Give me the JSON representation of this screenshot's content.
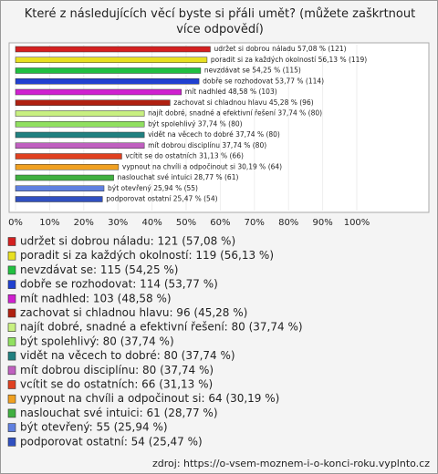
{
  "chart_data": {
    "type": "bar",
    "title": "Které z následujících věcí byste si přáli umět? (můžete zaškrtnout více odpovědí)",
    "values": [
      57.08,
      56.13,
      54.25,
      53.77,
      48.58,
      45.28,
      37.74,
      37.74,
      37.74,
      37.74,
      31.13,
      30.19,
      28.77,
      25.94,
      25.47
    ],
    "value_labels": [
      "udržet si dobrou náladu 57,08 % (121)",
      "poradit si za každých okolností 56,13 % (119)",
      "nevzdávat se 54,25 % (115)",
      "dobře se rozhodovat 53,77 % (114)",
      "mít nadhled 48,58 % (103)",
      "zachovat si chladnou hlavu 45,28 % (96)",
      "najít dobré, snadné a efektivní řešení 37,74 % (80)",
      "být spolehlivý 37,74 % (80)",
      "vidět na věcech to dobré 37,74 % (80)",
      "mít dobrou disciplínu 37,74 % (80)",
      "vcítit se do ostatních 31,13 % (66)",
      "vypnout na chvíli a odpočinout si 30,19 % (64)",
      "naslouchat své intuici 28,77 % (61)",
      "být otevřený 25,94 % (55)",
      "podporovat ostatní 25,47 % (54)"
    ],
    "legend": [
      "udržet si dobrou náladu: 121 (57,08 %)",
      "poradit si za každých okolností: 119 (56,13 %)",
      "nevzdávat se: 115 (54,25 %)",
      "dobře se rozhodovat: 114 (53,77 %)",
      "mít nadhled: 103 (48,58 %)",
      "zachovat si chladnou hlavu: 96 (45,28 %)",
      "najít dobré, snadné a efektivní řešení: 80 (37,74 %)",
      "být spolehlivý: 80 (37,74 %)",
      "vidět na věcech to dobré: 80 (37,74 %)",
      "mít dobrou disciplínu: 80 (37,74 %)",
      "vcítit se do ostatních: 66 (31,13 %)",
      "vypnout na chvíli a odpočinout si: 64 (30,19 %)",
      "naslouchat své intuici: 61 (28,77 %)",
      "být otevřený: 55 (25,94 %)",
      "podporovat ostatní: 54 (25,47 %)"
    ],
    "colors": [
      "#d42020",
      "#e8e020",
      "#20c040",
      "#2040d0",
      "#d020d0",
      "#b02010",
      "#c8f080",
      "#90e060",
      "#208080",
      "#c060c0",
      "#e04020",
      "#f0a020",
      "#40b040",
      "#6080e0",
      "#3050c0"
    ],
    "xlim": [
      0,
      100
    ],
    "xticks": [
      {
        "value": 0,
        "label": "0%"
      },
      {
        "value": 10,
        "label": "10%"
      },
      {
        "value": 20,
        "label": "20%"
      },
      {
        "value": 30,
        "label": "30%"
      },
      {
        "value": 40,
        "label": "40%"
      },
      {
        "value": 50,
        "label": "50%"
      },
      {
        "value": 60,
        "label": "60%"
      },
      {
        "value": 70,
        "label": "70%"
      },
      {
        "value": 80,
        "label": "80%"
      },
      {
        "value": 90,
        "label": "90%"
      },
      {
        "value": 100,
        "label": "100%"
      }
    ],
    "source": "zdroj: https://o-vsem-moznem-i-o-konci-roku.vyplnto.cz"
  }
}
